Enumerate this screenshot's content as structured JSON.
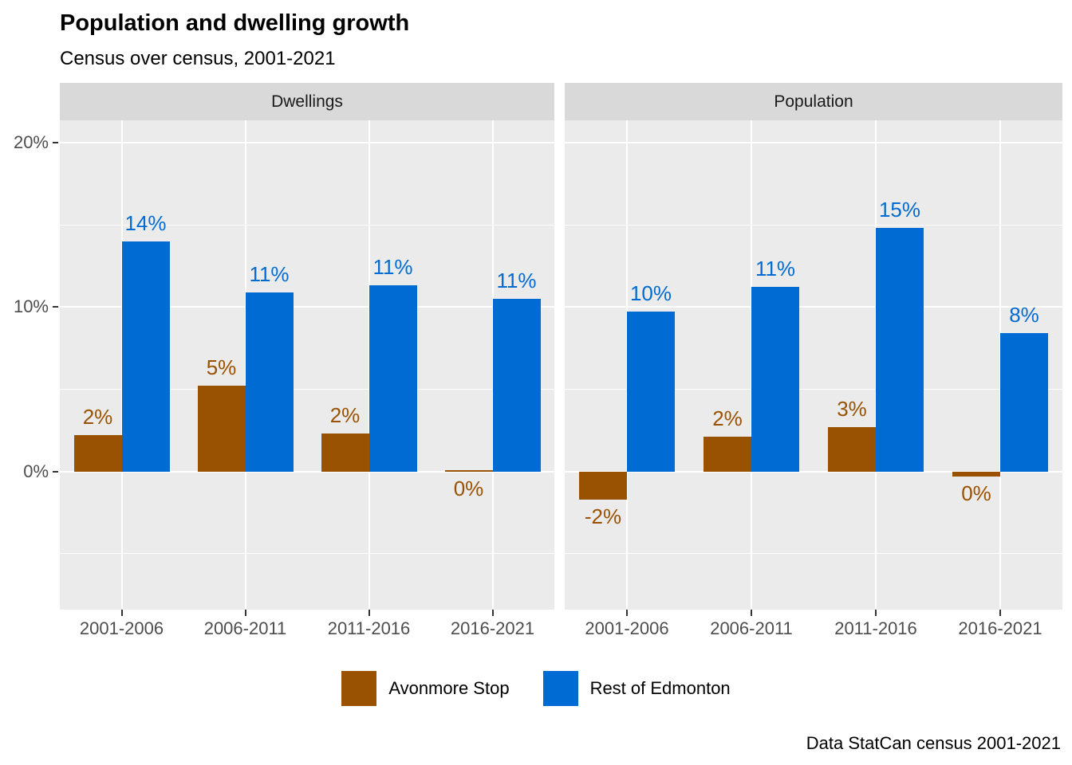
{
  "title": "Population and dwelling growth",
  "subtitle": "Census over census, 2001-2021",
  "caption": "Data StatCan census 2001-2021",
  "colors": {
    "avonmore": "#995202",
    "rest": "#006BD2",
    "panel_bg": "#EBEBEB",
    "strip_bg": "#D9D9D9",
    "grid": "#FFFFFF",
    "axis_text": "#4D4D4D",
    "tick_mark": "#333333"
  },
  "legend": {
    "entries": [
      {
        "label": "Avonmore Stop",
        "color_key": "avonmore"
      },
      {
        "label": "Rest of Edmonton",
        "color_key": "rest"
      }
    ],
    "position": "bottom"
  },
  "y_axis": {
    "tick_labels": [
      "20%",
      "10%",
      "0%"
    ],
    "tick_values": [
      20,
      10,
      0
    ]
  },
  "chart_data": {
    "type": "bar",
    "categories": [
      "2001-2006",
      "2006-2011",
      "2011-2016",
      "2016-2021"
    ],
    "facets": [
      {
        "name": "Dwellings",
        "series": [
          {
            "name": "Avonmore Stop",
            "color_key": "avonmore",
            "values": [
              2.2,
              5.2,
              2.3,
              0.1
            ],
            "labels": [
              "2%",
              "5%",
              "2%",
              "0%"
            ]
          },
          {
            "name": "Rest of Edmonton",
            "color_key": "rest",
            "values": [
              14.0,
              10.9,
              11.3,
              10.5
            ],
            "labels": [
              "14%",
              "11%",
              "11%",
              "11%"
            ]
          }
        ]
      },
      {
        "name": "Population",
        "series": [
          {
            "name": "Avonmore Stop",
            "color_key": "avonmore",
            "values": [
              -1.7,
              2.1,
              2.7,
              -0.3
            ],
            "labels": [
              "-2%",
              "2%",
              "3%",
              "0%"
            ]
          },
          {
            "name": "Rest of Edmonton",
            "color_key": "rest",
            "values": [
              9.7,
              11.2,
              14.8,
              8.4
            ],
            "labels": [
              "10%",
              "11%",
              "15%",
              "8%"
            ]
          }
        ]
      }
    ],
    "title": "Population and dwelling growth",
    "subtitle": "Census over census, 2001-2021",
    "xlabel": "",
    "ylabel": "",
    "ylim": [
      -8.4,
      21.35
    ],
    "gridlines": {
      "major": [
        0,
        10,
        20
      ],
      "minor": [
        -5,
        5,
        15
      ],
      "vertical_at_category_centers": true
    },
    "legend_position": "bottom"
  }
}
